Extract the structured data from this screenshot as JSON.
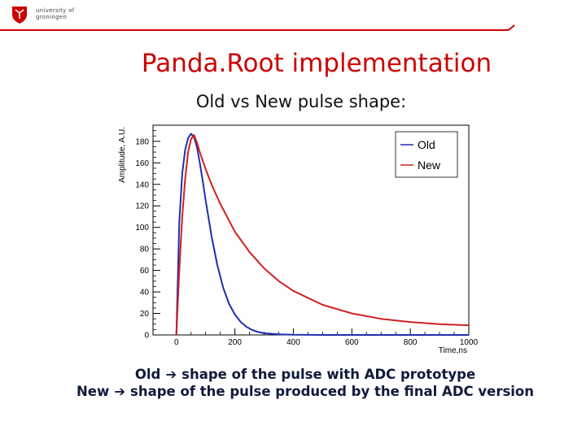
{
  "header": {
    "logo_text_line1": "university of",
    "logo_text_line2": "groningen",
    "accent_color": "#cc0000"
  },
  "slide": {
    "title": "Panda.Root implementation",
    "subtitle": "Old vs New pulse shape:"
  },
  "chart_data": {
    "type": "line",
    "xlabel": "Time,ns",
    "ylabel": "Amplitude, A.U.",
    "xlim": [
      -80,
      1000
    ],
    "ylim": [
      0,
      195
    ],
    "xticks": [
      0,
      200,
      400,
      600,
      800,
      1000
    ],
    "yticks": [
      0,
      20,
      40,
      60,
      80,
      100,
      120,
      140,
      160,
      180
    ],
    "legend_position": "top-right",
    "series": [
      {
        "name": "Old",
        "color": "#1f2fb0",
        "x": [
          0,
          10,
          20,
          30,
          40,
          50,
          60,
          70,
          80,
          90,
          100,
          120,
          140,
          160,
          180,
          200,
          220,
          240,
          260,
          280,
          300,
          350,
          400,
          500,
          600,
          800,
          1000
        ],
        "y": [
          0,
          105,
          150,
          172,
          183,
          187,
          184,
          175,
          160,
          143,
          125,
          92,
          65,
          44,
          29,
          19,
          12,
          7.5,
          4.5,
          2.7,
          1.6,
          0.5,
          0.15,
          0,
          0,
          0,
          0
        ]
      },
      {
        "name": "New",
        "color": "#d02020",
        "x": [
          0,
          10,
          20,
          30,
          40,
          50,
          60,
          70,
          80,
          100,
          120,
          150,
          200,
          250,
          300,
          350,
          400,
          500,
          600,
          700,
          800,
          900,
          1000
        ],
        "y": [
          0,
          60,
          110,
          145,
          170,
          182,
          186,
          179,
          170,
          154,
          140,
          122,
          96,
          77,
          62,
          50,
          41,
          28,
          20,
          15,
          12,
          10,
          9
        ]
      }
    ]
  },
  "captions": {
    "line1_term": "Old",
    "line1_text": "shape of the pulse with ADC prototype",
    "line2_term": "New",
    "line2_text": "shape of the pulse produced by the final ADC version",
    "arrow_icon": "right-arrow-icon"
  }
}
